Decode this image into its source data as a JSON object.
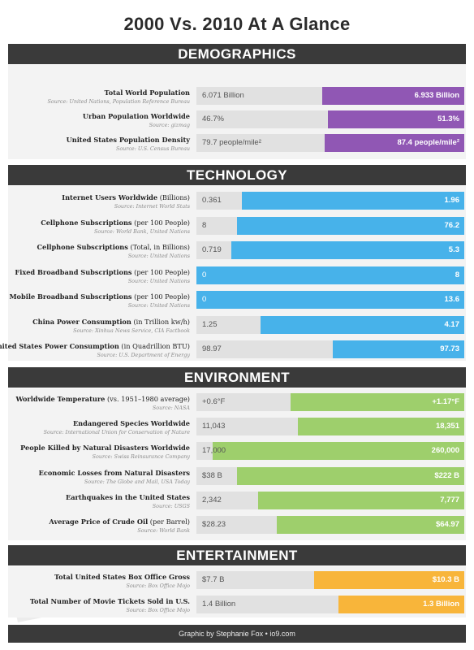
{
  "title": "2000 Vs. 2010 At A Glance",
  "year_left": "2000",
  "year_right": "2010",
  "footer": "Graphic by Stephanie Fox • io9.com",
  "colors": {
    "demographics": "#9057b4",
    "technology": "#47b2ea",
    "environment": "#9ecf6c",
    "entertainment": "#f8b53a",
    "header": "#3a3a3a"
  },
  "chart_data": [
    {
      "type": "bar",
      "title": "DEMOGRAPHICS",
      "color": "#9057b4",
      "rows": [
        {
          "label": "Total World Population",
          "unit": "",
          "source": "Source: United Nations, Population Reference Bureau",
          "v2000": "6.071 Billion",
          "v2010": "6.933 Billion",
          "fill": 0.53
        },
        {
          "label": "Urban Population Worldwide",
          "unit": "",
          "source": "Source: gizmag",
          "v2000": "46.7%",
          "v2010": "51.3%",
          "fill": 0.51
        },
        {
          "label": "United States Population Density",
          "unit": "",
          "source": "Source: U.S. Census Bureau",
          "v2000": "79.7 people/mile²",
          "v2010": "87.4 people/mile²",
          "fill": 0.52
        }
      ]
    },
    {
      "type": "bar",
      "title": "TECHNOLOGY",
      "color": "#47b2ea",
      "rows": [
        {
          "label": "Internet Users Worldwide",
          "unit": "(Billions)",
          "source": "Source: Internet World Stats",
          "v2000": "0.361",
          "v2010": "1.96",
          "fill": 0.83
        },
        {
          "label": "Cellphone Subscriptions",
          "unit": "(per 100 People)",
          "source": "Source: World Bank, United Nations",
          "v2000": "8",
          "v2010": "76.2",
          "fill": 0.85
        },
        {
          "label": "Cellphone Subscriptions",
          "unit": "(Total, in Billions)",
          "source": "Source: United Nations",
          "v2000": "0.719",
          "v2010": "5.3",
          "fill": 0.87
        },
        {
          "label": "Fixed Broadband Subscriptions",
          "unit": "(per 100 People)",
          "source": "Source: United Nations",
          "v2000": "0",
          "v2010": "8",
          "fill": 1.0
        },
        {
          "label": "Mobile Broadband Subscriptions",
          "unit": "(per 100 People)",
          "source": "Source: United Nations",
          "v2000": "0",
          "v2010": "13.6",
          "fill": 1.0
        },
        {
          "label": "China Power Consumption",
          "unit": "(in Trillion kw/h)",
          "source": "Source: Xinhua News Service, CIA Factbook",
          "v2000": "1.25",
          "v2010": "4.17",
          "fill": 0.76
        },
        {
          "label": "United States Power Consumption",
          "unit": "(in Quadrillion BTU)",
          "source": "Source: U.S. Department of Energy",
          "v2000": "98.97",
          "v2010": "97.73",
          "fill": 0.49
        }
      ]
    },
    {
      "type": "bar",
      "title": "ENVIRONMENT",
      "color": "#9ecf6c",
      "rows": [
        {
          "label": "Worldwide Temperature",
          "unit": "(vs. 1951–1980 average)",
          "source": "Source: NASA",
          "v2000": "+0.6°F",
          "v2010": "+1.17°F",
          "fill": 0.65
        },
        {
          "label": "Endangered Species Worldwide",
          "unit": "",
          "source": "Source: International Union for Conservation of Nature",
          "v2000": "11,043",
          "v2010": "18,351",
          "fill": 0.62
        },
        {
          "label": "People Killed by Natural Disasters Worldwide",
          "unit": "",
          "source": "Source: Swiss Reinsurance Company",
          "v2000": "17,000",
          "v2010": "260,000",
          "fill": 0.94
        },
        {
          "label": "Economic Losses from Natural Disasters",
          "unit": "",
          "source": "Source: The Globe and Mail, USA Today",
          "v2000": "$38 B",
          "v2010": "$222 B",
          "fill": 0.85
        },
        {
          "label": "Earthquakes in the United States",
          "unit": "",
          "source": "Source: USGS",
          "v2000": "2,342",
          "v2010": "7,777",
          "fill": 0.77
        },
        {
          "label": "Average Price of Crude Oil",
          "unit": "(per Barrel)",
          "source": "Source: World Bank",
          "v2000": "$28.23",
          "v2010": "$64.97",
          "fill": 0.7
        }
      ]
    },
    {
      "type": "bar",
      "title": "ENTERTAINMENT",
      "color": "#f8b53a",
      "rows": [
        {
          "label": "Total United States Box Office Gross",
          "unit": "",
          "source": "Source: Box Office Mojo",
          "v2000": "$7.7 B",
          "v2010": "$10.3 B",
          "fill": 0.56
        },
        {
          "label": "Total Number of Movie Tickets Sold in U.S.",
          "unit": "",
          "source": "Source: Box Office Mojo",
          "v2000": "1.4 Billion",
          "v2010": "1.3 Billion",
          "fill": 0.47
        }
      ]
    }
  ]
}
